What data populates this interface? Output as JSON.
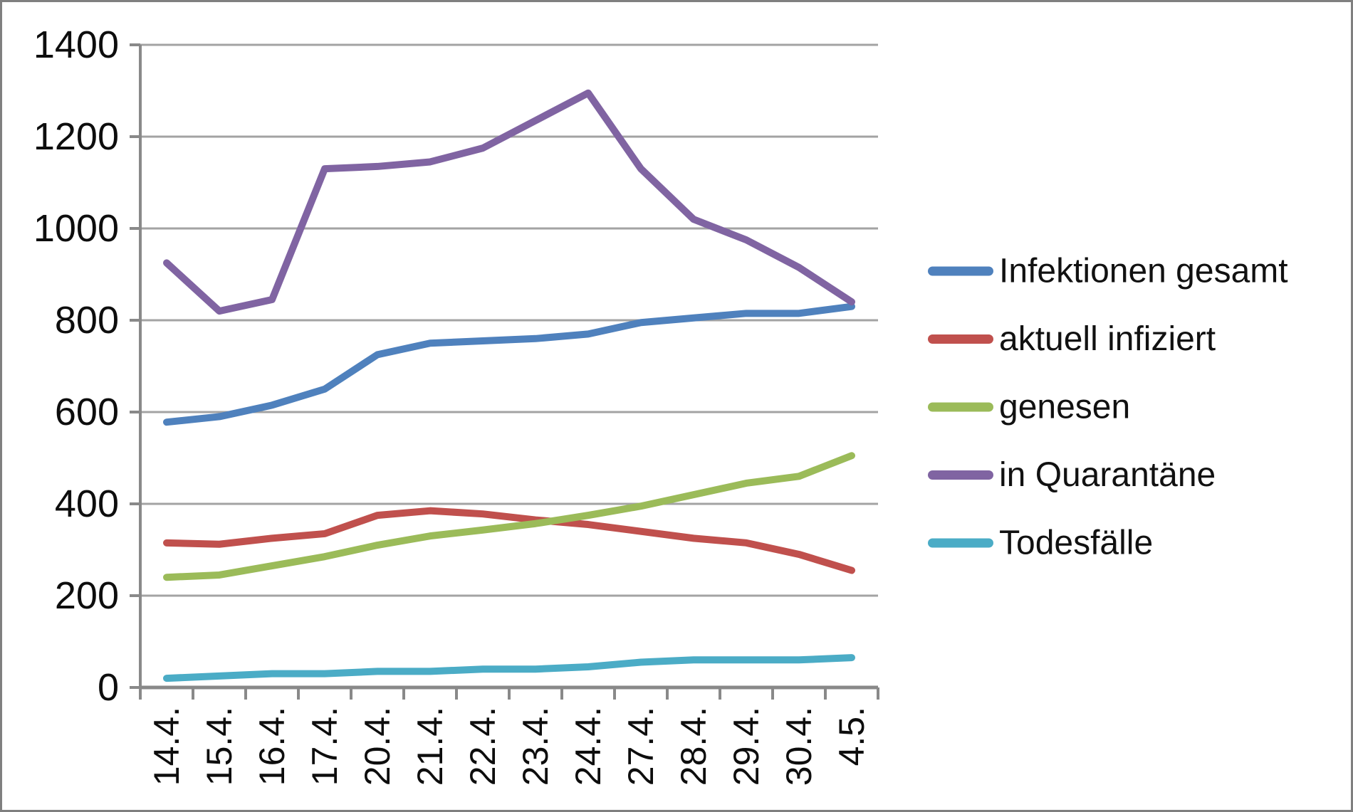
{
  "chart_data": {
    "type": "line",
    "title": "",
    "xlabel": "",
    "ylabel": "",
    "ylim": [
      0,
      1400
    ],
    "ytick_step": 200,
    "ytick_labels": [
      "0",
      "200",
      "400",
      "600",
      "800",
      "1000",
      "1200",
      "1400"
    ],
    "grid": "horizontal",
    "legend_position": "right",
    "categories": [
      "14.4.",
      "15.4.",
      "16.4.",
      "17.4.",
      "20.4.",
      "21.4.",
      "22.4.",
      "23.4.",
      "24.4.",
      "27.4.",
      "28.4.",
      "29.4.",
      "30.4.",
      "4.5."
    ],
    "series": [
      {
        "name": "Infektionen gesamt",
        "color": "#4f81bd",
        "values": [
          578,
          590,
          615,
          650,
          725,
          750,
          755,
          760,
          770,
          795,
          805,
          815,
          815,
          830
        ]
      },
      {
        "name": "aktuell infiziert",
        "color": "#c0504d",
        "values": [
          315,
          312,
          325,
          335,
          375,
          385,
          378,
          365,
          355,
          340,
          325,
          315,
          290,
          255
        ]
      },
      {
        "name": "genesen",
        "color": "#9bbb59",
        "values": [
          240,
          245,
          265,
          285,
          310,
          330,
          343,
          357,
          375,
          395,
          420,
          445,
          460,
          505
        ]
      },
      {
        "name": "in Quarantäne",
        "color": "#8064a2",
        "values": [
          925,
          820,
          845,
          1130,
          1135,
          1145,
          1175,
          1235,
          1295,
          1130,
          1020,
          975,
          915,
          840
        ]
      },
      {
        "name": "Todesfälle",
        "color": "#4bacc6",
        "values": [
          20,
          25,
          30,
          30,
          35,
          35,
          40,
          40,
          45,
          55,
          60,
          60,
          60,
          65
        ]
      }
    ],
    "colors": {
      "gridline": "#a3a3a3",
      "axis": "#898989",
      "tick": "#898989",
      "text": "#0d0d0d",
      "background": "#ffffff",
      "frame_border": "#7f7f7f"
    }
  }
}
